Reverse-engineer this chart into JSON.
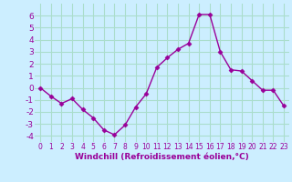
{
  "x": [
    0,
    1,
    2,
    3,
    4,
    5,
    6,
    7,
    8,
    9,
    10,
    11,
    12,
    13,
    14,
    15,
    16,
    17,
    18,
    19,
    20,
    21,
    22,
    23
  ],
  "y": [
    0.0,
    -0.7,
    -1.3,
    -0.9,
    -1.8,
    -2.5,
    -3.5,
    -3.9,
    -3.1,
    -1.6,
    -0.5,
    1.7,
    2.5,
    3.2,
    3.7,
    6.1,
    6.1,
    3.0,
    1.5,
    1.4,
    0.6,
    -0.2,
    -0.2,
    -1.5
  ],
  "line_color": "#990099",
  "marker": "D",
  "markersize": 2.5,
  "linewidth": 1,
  "xlabel": "Windchill (Refroidissement éolien,°C)",
  "xlim": [
    -0.5,
    23.5
  ],
  "ylim": [
    -4.5,
    7.0
  ],
  "yticks": [
    -4,
    -3,
    -2,
    -1,
    0,
    1,
    2,
    3,
    4,
    5,
    6
  ],
  "xticks": [
    0,
    1,
    2,
    3,
    4,
    5,
    6,
    7,
    8,
    9,
    10,
    11,
    12,
    13,
    14,
    15,
    16,
    17,
    18,
    19,
    20,
    21,
    22,
    23
  ],
  "background_color": "#cceeff",
  "grid_color": "#aaddcc",
  "tick_color": "#990099",
  "xlabel_fontsize": 6.5,
  "tick_fontsize_x": 5.5,
  "tick_fontsize_y": 6.5
}
